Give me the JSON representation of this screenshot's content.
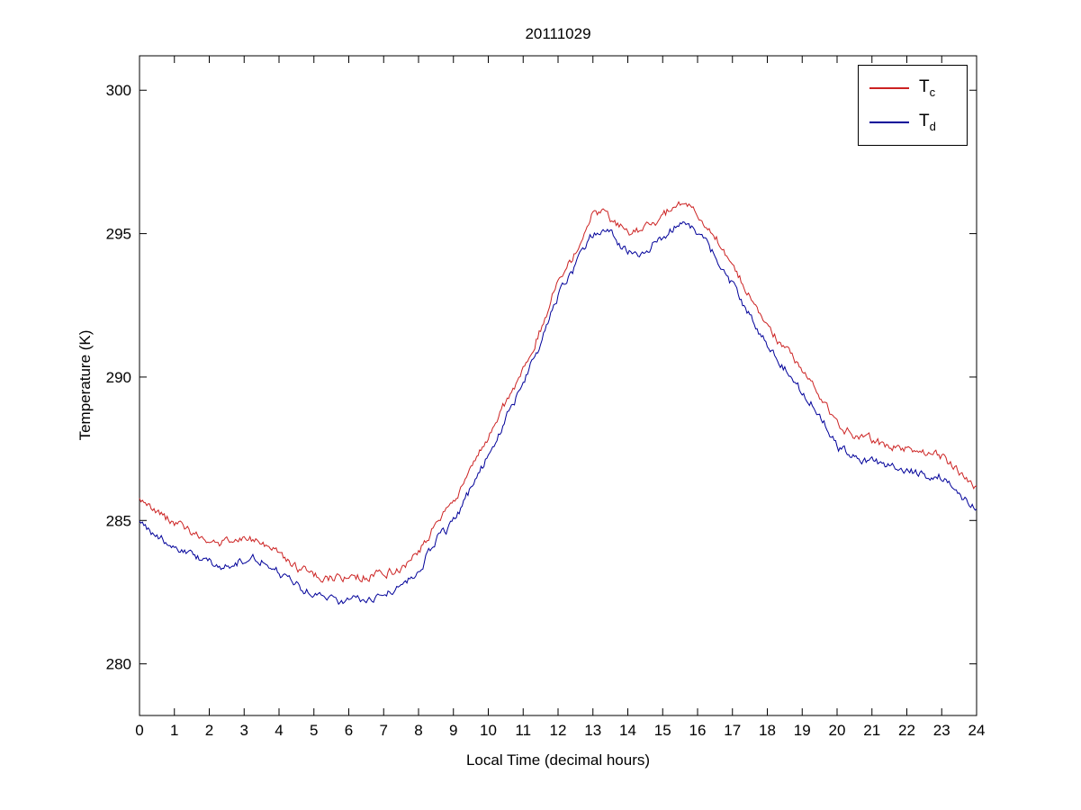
{
  "chart_data": {
    "type": "line",
    "title": "20111029",
    "xlabel": "Local Time (decimal hours)",
    "ylabel": "Temperature (K)",
    "xlim": [
      0,
      24
    ],
    "ylim": [
      278.2,
      301.2
    ],
    "xticks": [
      0,
      1,
      2,
      3,
      4,
      5,
      6,
      7,
      8,
      9,
      10,
      11,
      12,
      13,
      14,
      15,
      16,
      17,
      18,
      19,
      20,
      21,
      22,
      23,
      24
    ],
    "yticks": [
      280,
      285,
      290,
      295,
      300
    ],
    "grid": false,
    "axes_color": "#000000",
    "background": "#ffffff",
    "legend": {
      "position": "top-right",
      "entries": [
        {
          "series": "Tc",
          "base": "T",
          "sub": "c",
          "color": "#cc2222"
        },
        {
          "series": "Td",
          "base": "T",
          "sub": "d",
          "color": "#000099"
        }
      ]
    },
    "x": [
      0,
      0.5,
      1,
      1.5,
      2,
      2.5,
      3,
      3.5,
      4,
      4.5,
      5,
      5.5,
      6,
      6.5,
      7,
      7.5,
      8,
      8.5,
      9,
      9.5,
      10,
      10.5,
      11,
      11.5,
      12,
      12.5,
      13,
      13.5,
      14,
      14.5,
      15,
      15.5,
      16,
      16.5,
      17,
      17.5,
      18,
      18.5,
      19,
      19.5,
      20,
      20.5,
      21,
      21.5,
      22,
      22.5,
      23,
      23.5,
      24
    ],
    "series": [
      {
        "name": "Tc",
        "color": "#cc2222",
        "values": [
          285.7,
          285.3,
          284.9,
          284.55,
          284.25,
          284.2,
          284.3,
          284.25,
          283.85,
          283.4,
          283.1,
          283.0,
          283.0,
          283.05,
          283.15,
          283.4,
          283.9,
          284.9,
          285.6,
          286.7,
          287.9,
          289.1,
          290.3,
          291.7,
          293.3,
          294.3,
          295.7,
          295.5,
          295.1,
          295.2,
          295.6,
          296.1,
          295.7,
          294.9,
          293.9,
          292.8,
          291.8,
          291.0,
          290.2,
          289.4,
          288.4,
          288.0,
          287.8,
          287.6,
          287.5,
          287.3,
          287.2,
          286.7,
          286.2
        ]
      },
      {
        "name": "Td",
        "color": "#000099",
        "values": [
          285.0,
          284.45,
          284.05,
          283.75,
          283.5,
          283.45,
          283.6,
          283.6,
          283.2,
          282.75,
          282.4,
          282.2,
          282.25,
          282.3,
          282.5,
          282.8,
          283.3,
          284.3,
          284.95,
          286.1,
          287.3,
          288.55,
          289.8,
          291.2,
          292.85,
          293.85,
          295.0,
          294.95,
          294.35,
          294.45,
          294.9,
          295.3,
          295.0,
          294.2,
          293.2,
          292.1,
          291.1,
          290.3,
          289.5,
          288.7,
          287.6,
          287.3,
          287.05,
          286.9,
          286.75,
          286.6,
          286.5,
          285.95,
          285.4
        ]
      }
    ]
  }
}
